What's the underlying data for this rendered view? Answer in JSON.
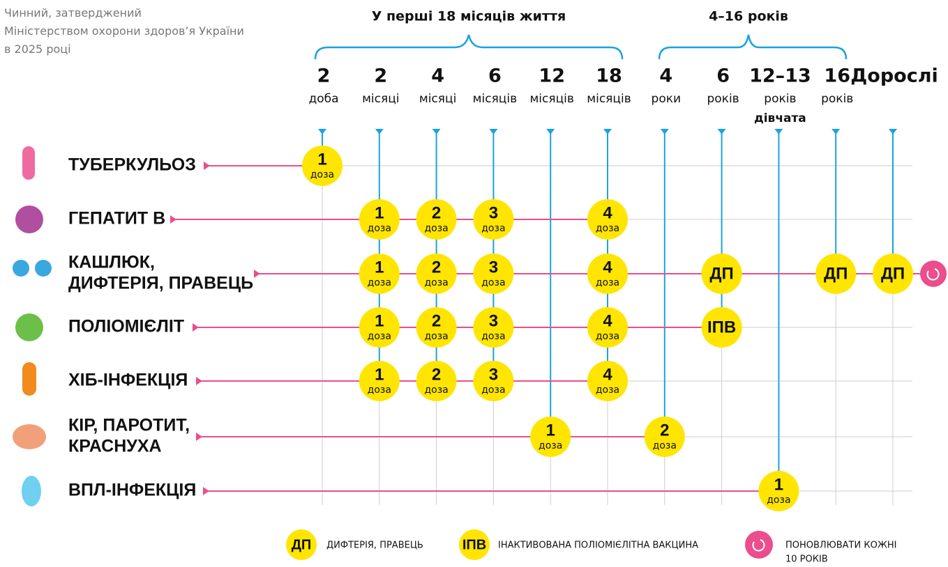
{
  "note": [
    "Чинний, затверджений",
    "Міністерством охорони здоров’я України",
    "в 2025 році"
  ],
  "groups": [
    "У перші 18 місяців життя",
    "4–16 років"
  ],
  "ages": [
    {
      "number": "2",
      "unit": "доба"
    },
    {
      "number": "2",
      "unit": "місяці"
    },
    {
      "number": "4",
      "unit": "місяці"
    },
    {
      "number": "6",
      "unit": "місяців"
    },
    {
      "number": "12",
      "unit": "місяців"
    },
    {
      "number": "18",
      "unit": "місяців"
    },
    {
      "number": "4",
      "unit": "роки"
    },
    {
      "number": "6",
      "unit": "років"
    },
    {
      "number": "12–13",
      "unit": "років",
      "note": "дівчата"
    },
    {
      "number": "16",
      "unit": "років"
    },
    {
      "number": "Дорослі"
    }
  ],
  "diseases": [
    {
      "name": [
        "ТУБЕРКУЛЬОЗ"
      ],
      "doses": [
        {
          "number": "1",
          "unit": "доза"
        },
        null,
        null,
        null,
        null,
        null,
        null,
        null,
        null,
        null,
        null
      ]
    },
    {
      "name": [
        "ГЕПАТИТ В"
      ],
      "doses": [
        null,
        {
          "number": "1",
          "unit": "доза"
        },
        {
          "number": "2",
          "unit": "доза"
        },
        {
          "number": "3",
          "unit": "доза"
        },
        null,
        {
          "number": "4",
          "unit": "доза"
        },
        null,
        null,
        null,
        null,
        null
      ]
    },
    {
      "name": [
        "КАШЛЮК,",
        "ДИФТЕРІЯ, ПРАВЕЦЬ"
      ],
      "doses": [
        null,
        {
          "number": "1",
          "unit": "доза"
        },
        {
          "number": "2",
          "unit": "доза"
        },
        {
          "number": "3",
          "unit": "доза"
        },
        null,
        {
          "number": "4",
          "unit": "доза"
        },
        null,
        {
          "label": "ДП"
        },
        null,
        {
          "label": "ДП"
        },
        {
          "label": "ДП"
        }
      ]
    },
    {
      "name": [
        "ПОЛІОМІЄЛІТ"
      ],
      "doses": [
        null,
        {
          "number": "1",
          "unit": "доза"
        },
        {
          "number": "2",
          "unit": "доза"
        },
        {
          "number": "3",
          "unit": "доза"
        },
        null,
        {
          "number": "4",
          "unit": "доза"
        },
        null,
        {
          "label": "ІПВ"
        },
        null,
        null,
        null
      ]
    },
    {
      "name": [
        "ХІБ-ІНФЕКЦІЯ"
      ],
      "doses": [
        null,
        {
          "number": "1",
          "unit": "доза"
        },
        {
          "number": "2",
          "unit": "доза"
        },
        {
          "number": "3",
          "unit": "доза"
        },
        null,
        {
          "number": "4",
          "unit": "доза"
        },
        null,
        null,
        null,
        null,
        null
      ]
    },
    {
      "name": [
        "КІР, ПАРОТИТ,",
        "КРАСНУХА"
      ],
      "doses": [
        null,
        null,
        null,
        null,
        {
          "number": "1",
          "unit": "доза"
        },
        null,
        {
          "number": "2",
          "unit": "доза"
        },
        null,
        null,
        null,
        null
      ]
    },
    {
      "name": [
        "ВПЛ-ІНФЕКЦІЯ"
      ],
      "doses": [
        null,
        null,
        null,
        null,
        null,
        null,
        null,
        null,
        {
          "number": "1",
          "unit": "доза"
        },
        null,
        null
      ]
    }
  ],
  "legend": [
    {
      "symbol": "ДП",
      "text": "ДИФТЕРІЯ, ПРАВЕЦЬ"
    },
    {
      "symbol": "ІПВ",
      "text": "ІНАКТИВОВАНА ПОЛІОМІЄЛІТНА ВАКЦИНА"
    },
    {
      "text": [
        "ПОНОВЛЮВАТИ КОЖНІ",
        "10 РОКІВ"
      ]
    }
  ]
}
